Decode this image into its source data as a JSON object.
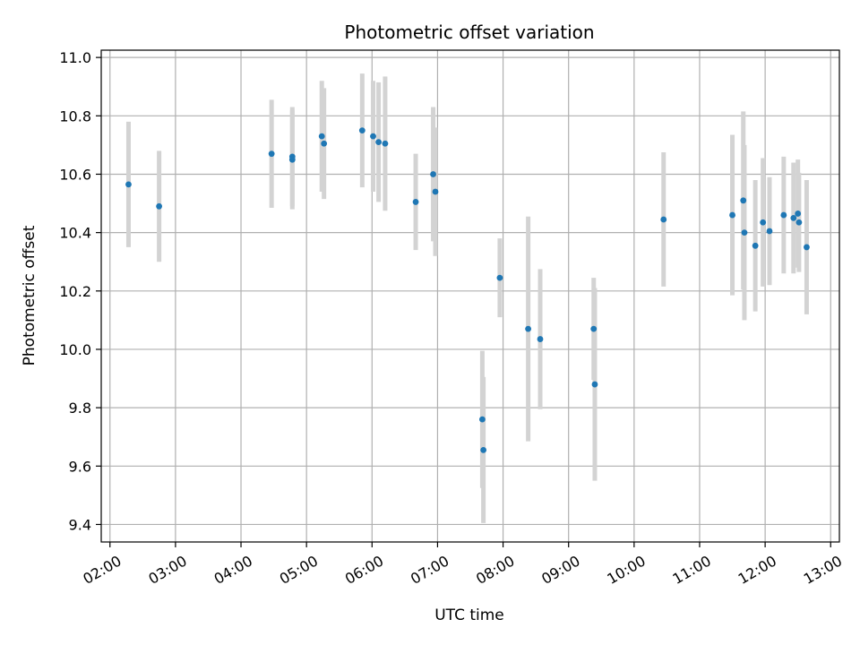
{
  "chart_data": {
    "type": "scatter",
    "title": "Photometric offset variation",
    "xlabel": "UTC time",
    "ylabel": "Photometric offset",
    "x_tick_labels": [
      "02:00",
      "03:00",
      "04:00",
      "05:00",
      "06:00",
      "07:00",
      "08:00",
      "09:00",
      "10:00",
      "11:00",
      "12:00",
      "13:00"
    ],
    "y_tick_labels": [
      "9.4",
      "9.6",
      "9.8",
      "10.0",
      "10.2",
      "10.4",
      "10.6",
      "10.8",
      "11.0"
    ],
    "xlim": [
      "01:52",
      "13:08"
    ],
    "ylim": [
      9.34,
      11.025
    ],
    "grid": true,
    "colors": {
      "point": "#1f77b4",
      "errorbar": "#d3d3d3",
      "grid": "#b0b0b0"
    },
    "points": [
      {
        "time": "02:17",
        "y": 10.565,
        "err": 0.215
      },
      {
        "time": "02:45",
        "y": 10.49,
        "err": 0.19
      },
      {
        "time": "04:28",
        "y": 10.67,
        "err": 0.185
      },
      {
        "time": "04:47",
        "y": 10.65,
        "err": 0.17
      },
      {
        "time": "04:47",
        "y": 10.66,
        "err": 0.17
      },
      {
        "time": "05:14",
        "y": 10.73,
        "err": 0.19
      },
      {
        "time": "05:16",
        "y": 10.705,
        "err": 0.19
      },
      {
        "time": "05:51",
        "y": 10.75,
        "err": 0.195
      },
      {
        "time": "06:01",
        "y": 10.73,
        "err": 0.19
      },
      {
        "time": "06:06",
        "y": 10.71,
        "err": 0.205
      },
      {
        "time": "06:12",
        "y": 10.705,
        "err": 0.23
      },
      {
        "time": "06:40",
        "y": 10.505,
        "err": 0.165
      },
      {
        "time": "06:56",
        "y": 10.6,
        "err": 0.23
      },
      {
        "time": "06:58",
        "y": 10.54,
        "err": 0.22
      },
      {
        "time": "07:41",
        "y": 9.76,
        "err": 0.235
      },
      {
        "time": "07:42",
        "y": 9.655,
        "err": 0.25
      },
      {
        "time": "07:57",
        "y": 10.245,
        "err": 0.135
      },
      {
        "time": "08:23",
        "y": 10.07,
        "err": 0.385
      },
      {
        "time": "08:34",
        "y": 10.035,
        "err": 0.24
      },
      {
        "time": "09:23",
        "y": 10.07,
        "err": 0.175
      },
      {
        "time": "09:24",
        "y": 9.88,
        "err": 0.33
      },
      {
        "time": "10:27",
        "y": 10.445,
        "err": 0.23
      },
      {
        "time": "11:30",
        "y": 10.46,
        "err": 0.275
      },
      {
        "time": "11:40",
        "y": 10.51,
        "err": 0.305
      },
      {
        "time": "11:41",
        "y": 10.4,
        "err": 0.3
      },
      {
        "time": "11:51",
        "y": 10.355,
        "err": 0.225
      },
      {
        "time": "11:58",
        "y": 10.435,
        "err": 0.22
      },
      {
        "time": "12:04",
        "y": 10.405,
        "err": 0.185
      },
      {
        "time": "12:17",
        "y": 10.46,
        "err": 0.2
      },
      {
        "time": "12:26",
        "y": 10.45,
        "err": 0.19
      },
      {
        "time": "12:30",
        "y": 10.465,
        "err": 0.185
      },
      {
        "time": "12:31",
        "y": 10.435,
        "err": 0.17
      },
      {
        "time": "12:38",
        "y": 10.35,
        "err": 0.23
      }
    ]
  }
}
